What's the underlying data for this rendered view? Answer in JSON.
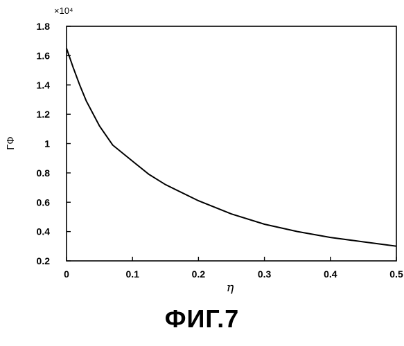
{
  "chart_data": {
    "type": "line",
    "title": "",
    "xlabel": "η",
    "ylabel": "ГФ",
    "y_multiplier_label": "×10⁴",
    "xlim": [
      0,
      0.5
    ],
    "ylim": [
      0.2,
      1.8
    ],
    "x_ticks": [
      "0",
      "0.1",
      "0.2",
      "0.3",
      "0.4",
      "0.5"
    ],
    "y_ticks": [
      "0.2",
      "0.4",
      "0.6",
      "0.8",
      "1",
      "1.2",
      "1.4",
      "1.6",
      "1.8"
    ],
    "grid": false,
    "series": [
      {
        "x": [
          0,
          0.01,
          0.02,
          0.03,
          0.05,
          0.07,
          0.1,
          0.125,
          0.15,
          0.2,
          0.25,
          0.3,
          0.35,
          0.4,
          0.45,
          0.5
        ],
        "y": [
          1.65,
          1.52,
          1.4,
          1.29,
          1.12,
          0.99,
          0.88,
          0.79,
          0.72,
          0.61,
          0.52,
          0.45,
          0.4,
          0.36,
          0.33,
          0.3
        ]
      }
    ]
  },
  "caption": "ФИГ.7"
}
